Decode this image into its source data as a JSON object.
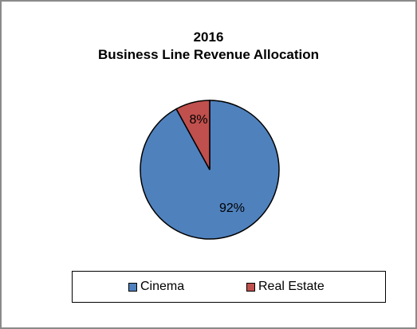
{
  "chart_data": {
    "type": "pie",
    "title_line1": "2016",
    "title_line2": "Business Line Revenue Allocation",
    "categories": [
      "Cinema",
      "Real Estate"
    ],
    "values": [
      92,
      8
    ],
    "data_labels": [
      "92%",
      "8%"
    ],
    "colors": [
      "#4f81bd",
      "#c0504d"
    ],
    "legend_position": "bottom"
  }
}
